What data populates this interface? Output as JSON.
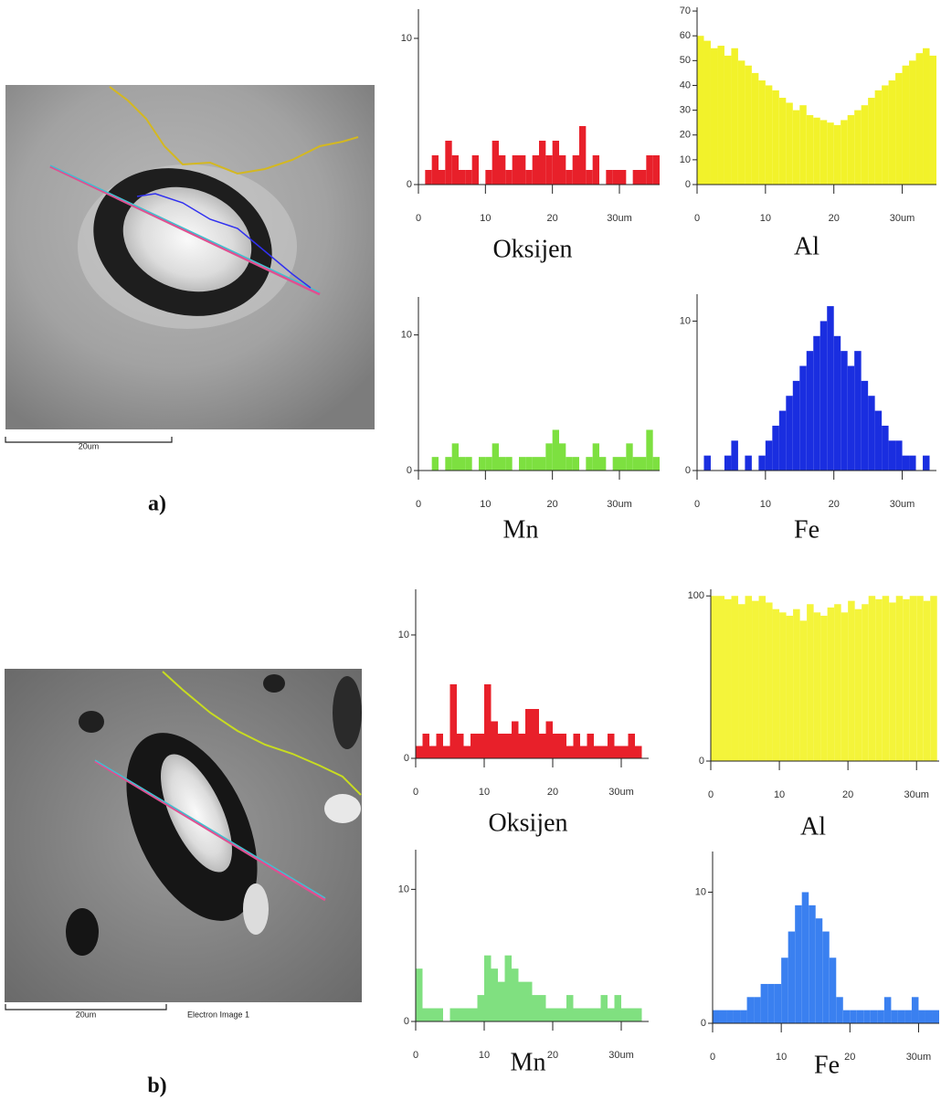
{
  "images": [
    {
      "label": "a)",
      "scale_bar": "20um"
    },
    {
      "label": "b)",
      "scale_bar": "20um",
      "caption": "Electron Image 1"
    }
  ],
  "chart_data": [
    {
      "type": "histogram",
      "title": "Oksijen",
      "color": "#e8202a",
      "xlim": [
        0,
        36
      ],
      "ylim": [
        0,
        12
      ],
      "xticks": [
        0,
        10,
        20,
        {
          "value": 30,
          "label": "30um"
        }
      ],
      "yticks": [
        0,
        10
      ],
      "bins": [
        0,
        1,
        2,
        3,
        4,
        5,
        6,
        7,
        8,
        9,
        10,
        11,
        12,
        13,
        14,
        15,
        16,
        17,
        18,
        19,
        20,
        21,
        22,
        23,
        24,
        25,
        26,
        27,
        28,
        29,
        30,
        31,
        32,
        33,
        34,
        35,
        36
      ],
      "values": [
        0,
        1,
        2,
        1,
        3,
        2,
        1,
        1,
        2,
        0,
        1,
        3,
        2,
        1,
        2,
        2,
        1,
        2,
        3,
        2,
        3,
        2,
        1,
        2,
        4,
        1,
        2,
        0,
        1,
        1,
        1,
        0,
        1,
        1,
        2,
        2
      ]
    },
    {
      "type": "histogram",
      "title": "Al",
      "color": "#f2f22a",
      "xlim": [
        0,
        35
      ],
      "ylim": [
        0,
        71.5
      ],
      "xticks": [
        0,
        10,
        20,
        {
          "value": 30,
          "label": "30um"
        }
      ],
      "yticks": [
        0,
        10,
        20,
        30,
        40,
        50,
        60,
        70
      ],
      "bins": [
        0,
        1,
        2,
        3,
        4,
        5,
        6,
        7,
        8,
        9,
        10,
        11,
        12,
        13,
        14,
        15,
        16,
        17,
        18,
        19,
        20,
        21,
        22,
        23,
        24,
        25,
        26,
        27,
        28,
        29,
        30,
        31,
        32,
        33,
        34,
        35
      ],
      "values": [
        60,
        58,
        55,
        56,
        52,
        55,
        50,
        48,
        45,
        42,
        40,
        38,
        35,
        33,
        30,
        32,
        28,
        27,
        26,
        25,
        24,
        26,
        28,
        30,
        32,
        35,
        38,
        40,
        42,
        45,
        48,
        50,
        53,
        55,
        52
      ]
    },
    {
      "type": "histogram",
      "title": "Mn",
      "color": "#7de040",
      "xlim": [
        0,
        36
      ],
      "ylim": [
        0,
        12.8
      ],
      "xticks": [
        0,
        10,
        20,
        {
          "value": 30,
          "label": "30um"
        }
      ],
      "yticks": [
        0,
        10
      ],
      "bins": [
        0,
        1,
        2,
        3,
        4,
        5,
        6,
        7,
        8,
        9,
        10,
        11,
        12,
        13,
        14,
        15,
        16,
        17,
        18,
        19,
        20,
        21,
        22,
        23,
        24,
        25,
        26,
        27,
        28,
        29,
        30,
        31,
        32,
        33,
        34,
        35,
        36
      ],
      "values": [
        0,
        0,
        1,
        0,
        1,
        2,
        1,
        1,
        0,
        1,
        1,
        2,
        1,
        1,
        0,
        1,
        1,
        1,
        1,
        2,
        3,
        2,
        1,
        1,
        0,
        1,
        2,
        1,
        0,
        1,
        1,
        2,
        1,
        1,
        3,
        1
      ]
    },
    {
      "type": "histogram",
      "title": "Fe",
      "color": "#1a2ee0",
      "xlim": [
        0,
        35
      ],
      "ylim": [
        0,
        11.8
      ],
      "xticks": [
        0,
        10,
        20,
        {
          "value": 30,
          "label": "30um"
        }
      ],
      "yticks": [
        0,
        10
      ],
      "bins": [
        0,
        1,
        2,
        3,
        4,
        5,
        6,
        7,
        8,
        9,
        10,
        11,
        12,
        13,
        14,
        15,
        16,
        17,
        18,
        19,
        20,
        21,
        22,
        23,
        24,
        25,
        26,
        27,
        28,
        29,
        30,
        31,
        32,
        33,
        34,
        35
      ],
      "values": [
        0,
        1,
        0,
        0,
        1,
        2,
        0,
        1,
        0,
        1,
        2,
        3,
        4,
        5,
        6,
        7,
        8,
        9,
        10,
        11,
        9,
        8,
        7,
        8,
        6,
        5,
        4,
        3,
        2,
        2,
        1,
        1,
        0,
        1,
        0
      ]
    },
    {
      "type": "histogram",
      "title": "Oksijen",
      "color": "#e8202a",
      "xlim": [
        0,
        34
      ],
      "ylim": [
        0,
        13.7
      ],
      "xticks": [
        0,
        10,
        20,
        {
          "value": 30,
          "label": "30um"
        }
      ],
      "yticks": [
        0,
        10
      ],
      "bins": [
        0,
        1,
        2,
        3,
        4,
        5,
        6,
        7,
        8,
        9,
        10,
        11,
        12,
        13,
        14,
        15,
        16,
        17,
        18,
        19,
        20,
        21,
        22,
        23,
        24,
        25,
        26,
        27,
        28,
        29,
        30,
        31,
        32,
        33
      ],
      "values": [
        1,
        2,
        1,
        2,
        1,
        6,
        2,
        1,
        2,
        2,
        6,
        3,
        2,
        2,
        3,
        2,
        4,
        4,
        2,
        3,
        2,
        2,
        1,
        2,
        1,
        2,
        1,
        1,
        2,
        1,
        1,
        2,
        1
      ]
    },
    {
      "type": "histogram",
      "title": "Al",
      "color": "#f4f43a",
      "xlim": [
        0,
        33.3
      ],
      "ylim": [
        0,
        104
      ],
      "xticks": [
        0,
        10,
        20,
        {
          "value": 30,
          "label": "30um"
        }
      ],
      "yticks": [
        0,
        100
      ],
      "bins": [
        0,
        1,
        2,
        3,
        4,
        5,
        6,
        7,
        8,
        9,
        10,
        11,
        12,
        13,
        14,
        15,
        16,
        17,
        18,
        19,
        20,
        21,
        22,
        23,
        24,
        25,
        26,
        27,
        28,
        29,
        30,
        31,
        32,
        33
      ],
      "values": [
        100,
        100,
        98,
        100,
        95,
        100,
        97,
        100,
        96,
        92,
        90,
        88,
        92,
        85,
        95,
        90,
        88,
        93,
        95,
        90,
        97,
        92,
        95,
        100,
        98,
        100,
        96,
        100,
        98,
        100,
        100,
        97,
        100
      ]
    },
    {
      "type": "histogram",
      "title": "Mn",
      "color": "#80e080",
      "xlim": [
        0,
        34
      ],
      "ylim": [
        0,
        13
      ],
      "xticks": [
        0,
        10,
        20,
        {
          "value": 30,
          "label": "30um"
        }
      ],
      "yticks": [
        0,
        10
      ],
      "bins": [
        0,
        1,
        2,
        3,
        4,
        5,
        6,
        7,
        8,
        9,
        10,
        11,
        12,
        13,
        14,
        15,
        16,
        17,
        18,
        19,
        20,
        21,
        22,
        23,
        24,
        25,
        26,
        27,
        28,
        29,
        30,
        31,
        32,
        33
      ],
      "values": [
        4,
        1,
        1,
        1,
        0,
        1,
        1,
        1,
        1,
        2,
        5,
        4,
        3,
        5,
        4,
        3,
        3,
        2,
        2,
        1,
        1,
        1,
        2,
        1,
        1,
        1,
        1,
        2,
        1,
        2,
        1,
        1,
        1
      ]
    },
    {
      "type": "histogram",
      "title": "Fe",
      "color": "#3a80f0",
      "xlim": [
        0,
        33
      ],
      "ylim": [
        0,
        13.1
      ],
      "xticks": [
        0,
        10,
        20,
        {
          "value": 30,
          "label": "30um"
        }
      ],
      "yticks": [
        0,
        10
      ],
      "bins": [
        0,
        1,
        2,
        3,
        4,
        5,
        6,
        7,
        8,
        9,
        10,
        11,
        12,
        13,
        14,
        15,
        16,
        17,
        18,
        19,
        20,
        21,
        22,
        23,
        24,
        25,
        26,
        27,
        28,
        29,
        30,
        31,
        32,
        33
      ],
      "values": [
        1,
        1,
        1,
        1,
        1,
        2,
        2,
        3,
        3,
        3,
        5,
        7,
        9,
        10,
        9,
        8,
        7,
        5,
        2,
        1,
        1,
        1,
        1,
        1,
        1,
        2,
        1,
        1,
        1,
        2,
        1,
        1,
        1
      ]
    }
  ]
}
